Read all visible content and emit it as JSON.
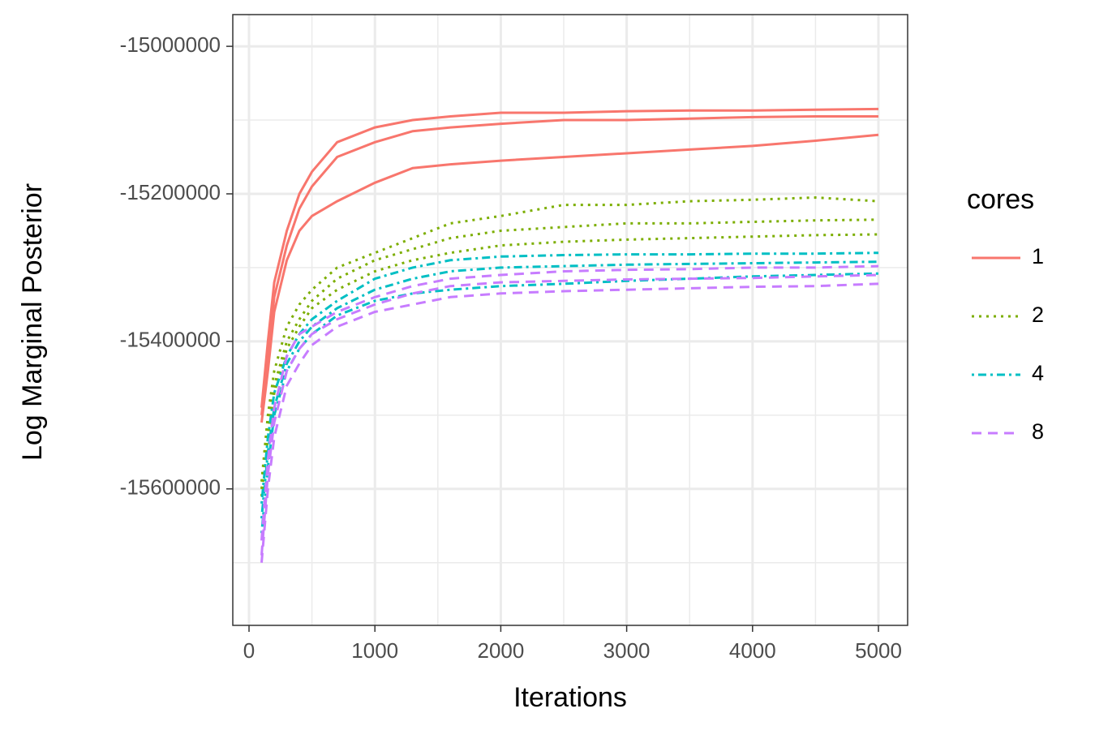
{
  "chart_data": {
    "type": "line",
    "x_label": "Iterations",
    "y_label": "Log Marginal Posterior",
    "legend_title": "cores",
    "x": [
      100,
      150,
      200,
      300,
      400,
      500,
      700,
      1000,
      1300,
      1600,
      2000,
      2500,
      3000,
      3500,
      4000,
      4500,
      5000
    ],
    "xlim": [
      -129,
      5232
    ],
    "ylim": [
      -15785000,
      -14957000
    ],
    "xticks": [
      0,
      1000,
      2000,
      3000,
      4000,
      5000
    ],
    "yticks": [
      -15000000,
      -15200000,
      -15400000,
      -15600000
    ],
    "x_minor_grid": [
      500,
      1500,
      2500,
      3500,
      4500
    ],
    "y_minor_grid": [
      -15100000,
      -15300000,
      -15500000,
      -15700000
    ],
    "grid": true,
    "legend": "right",
    "series": [
      {
        "name": "1",
        "color": "#F8766D",
        "linetype": "solid",
        "runs": [
          [
            -15490000,
            -15400000,
            -15320000,
            -15250000,
            -15200000,
            -15170000,
            -15130000,
            -15110000,
            -15100000,
            -15095000,
            -15090000,
            -15090000,
            -15088000,
            -15087000,
            -15087000,
            -15086000,
            -15085000
          ],
          [
            -15500000,
            -15420000,
            -15340000,
            -15270000,
            -15220000,
            -15190000,
            -15150000,
            -15130000,
            -15115000,
            -15110000,
            -15105000,
            -15100000,
            -15100000,
            -15098000,
            -15096000,
            -15095000,
            -15095000
          ],
          [
            -15510000,
            -15440000,
            -15360000,
            -15290000,
            -15250000,
            -15230000,
            -15210000,
            -15185000,
            -15165000,
            -15160000,
            -15155000,
            -15150000,
            -15145000,
            -15140000,
            -15135000,
            -15128000,
            -15120000
          ]
        ]
      },
      {
        "name": "2",
        "color": "#7CAE00",
        "linetype": "dotted",
        "runs": [
          [
            -15590000,
            -15500000,
            -15440000,
            -15380000,
            -15350000,
            -15330000,
            -15300000,
            -15280000,
            -15260000,
            -15240000,
            -15230000,
            -15215000,
            -15215000,
            -15210000,
            -15208000,
            -15205000,
            -15210000
          ],
          [
            -15600000,
            -15520000,
            -15460000,
            -15400000,
            -15370000,
            -15345000,
            -15315000,
            -15290000,
            -15275000,
            -15260000,
            -15250000,
            -15245000,
            -15240000,
            -15240000,
            -15238000,
            -15236000,
            -15235000
          ],
          [
            -15610000,
            -15530000,
            -15470000,
            -15410000,
            -15380000,
            -15355000,
            -15330000,
            -15305000,
            -15290000,
            -15280000,
            -15270000,
            -15265000,
            -15262000,
            -15260000,
            -15258000,
            -15256000,
            -15255000
          ]
        ]
      },
      {
        "name": "4",
        "color": "#00BFC4",
        "linetype": "dotdash",
        "runs": [
          [
            -15620000,
            -15530000,
            -15470000,
            -15420000,
            -15390000,
            -15370000,
            -15345000,
            -15315000,
            -15300000,
            -15290000,
            -15285000,
            -15283000,
            -15282000,
            -15282000,
            -15281000,
            -15281000,
            -15280000
          ],
          [
            -15640000,
            -15550000,
            -15490000,
            -15430000,
            -15400000,
            -15380000,
            -15355000,
            -15330000,
            -15315000,
            -15305000,
            -15300000,
            -15298000,
            -15296000,
            -15295000,
            -15294000,
            -15293000,
            -15292000
          ],
          [
            -15660000,
            -15570000,
            -15500000,
            -15440000,
            -15410000,
            -15390000,
            -15365000,
            -15345000,
            -15335000,
            -15330000,
            -15325000,
            -15322000,
            -15318000,
            -15315000,
            -15312000,
            -15310000,
            -15308000
          ]
        ]
      },
      {
        "name": "8",
        "color": "#C77CFF",
        "linetype": "dashed",
        "runs": [
          [
            -15670000,
            -15560000,
            -15490000,
            -15420000,
            -15390000,
            -15380000,
            -15360000,
            -15340000,
            -15325000,
            -15315000,
            -15310000,
            -15305000,
            -15303000,
            -15302000,
            -15300000,
            -15300000,
            -15298000
          ],
          [
            -15690000,
            -15580000,
            -15510000,
            -15440000,
            -15410000,
            -15390000,
            -15370000,
            -15350000,
            -15335000,
            -15325000,
            -15320000,
            -15318000,
            -15316000,
            -15315000,
            -15314000,
            -15312000,
            -15310000
          ],
          [
            -15700000,
            -15600000,
            -15530000,
            -15460000,
            -15430000,
            -15405000,
            -15380000,
            -15360000,
            -15350000,
            -15340000,
            -15335000,
            -15332000,
            -15330000,
            -15328000,
            -15326000,
            -15325000,
            -15322000
          ]
        ]
      }
    ]
  }
}
